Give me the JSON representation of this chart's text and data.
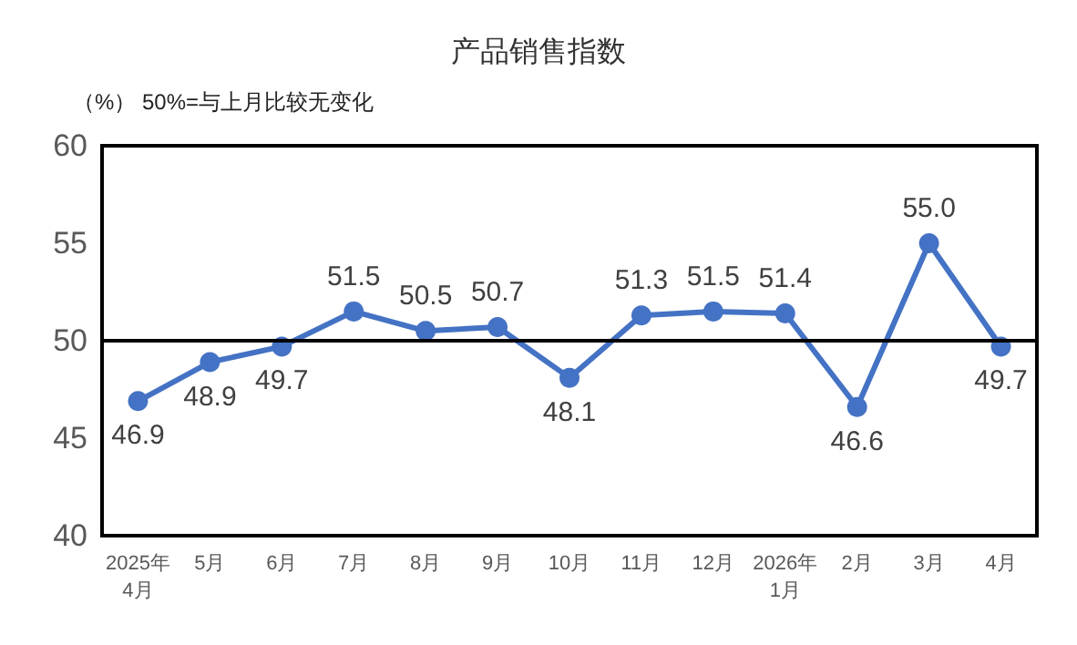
{
  "chart_data": {
    "type": "line",
    "title": "产品销售指数",
    "ylabel": "（%）",
    "annotations": [
      "50%=与上月比较无变化"
    ],
    "categories": [
      "2025年\n4月",
      "5月",
      "6月",
      "7月",
      "8月",
      "9月",
      "10月",
      "11月",
      "12月",
      "2026年\n1月",
      "2月",
      "3月",
      "4月"
    ],
    "series": [
      {
        "color": "#4472c4",
        "values": [
          46.9,
          48.9,
          49.7,
          51.5,
          50.5,
          50.7,
          48.1,
          51.3,
          51.5,
          51.4,
          46.6,
          55.0,
          49.7
        ],
        "value_labels": [
          "46.9",
          "48.9",
          "49.7",
          "51.5",
          "50.5",
          "50.7",
          "48.1",
          "51.3",
          "51.5",
          "51.4",
          "46.6",
          "55.0",
          "49.7"
        ]
      }
    ],
    "ylim": [
      40,
      60
    ],
    "yticks": [
      40,
      45,
      50,
      55,
      60
    ],
    "grid": false,
    "marker": "circle",
    "line_style": "solid",
    "ref_lines": [
      {
        "axis": "y",
        "value": 50,
        "color": "#000000",
        "line_style": "solid"
      }
    ]
  }
}
